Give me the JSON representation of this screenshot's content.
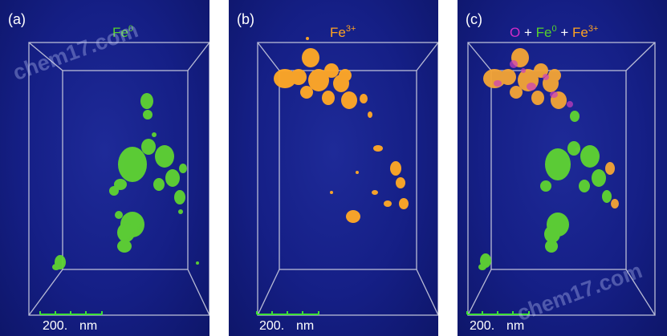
{
  "panels": [
    {
      "label": "(a)",
      "title": {
        "base": "Fe",
        "sup": "0"
      }
    },
    {
      "label": "(b)",
      "title": {
        "base": "Fe",
        "sup": "3+"
      }
    },
    {
      "label": "(c)",
      "title": {
        "o": "O",
        "plus1": "+",
        "fe0": "Fe",
        "fe0_sup": "0",
        "plus2": "+",
        "fe3": "Fe",
        "fe3_sup": "3+"
      }
    }
  ],
  "scale_bar": {
    "value": "200.",
    "unit": "nm"
  },
  "watermark": "chem17.com",
  "colors": {
    "fe0": "#56d12c",
    "fe3": "#ffa321",
    "oxygen": "#d12cc7",
    "background": "#151f86",
    "box_line": "#b9bcd6"
  }
}
